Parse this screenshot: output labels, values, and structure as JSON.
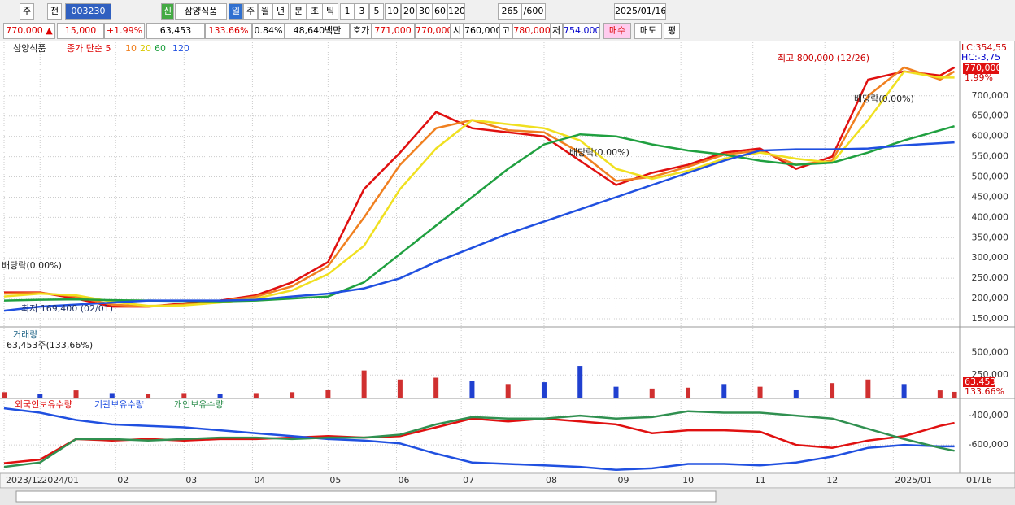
{
  "header": {
    "toolbar": [
      "주",
      "전",
      "003230",
      "신",
      "삼양식품",
      "일",
      "주",
      "월",
      "년",
      "분",
      "초",
      "틱",
      "1",
      "3",
      "5",
      "10",
      "20",
      "30",
      "60",
      "120",
      "265",
      "/600",
      "2025/01/16"
    ],
    "info": [
      "770,000 ▲",
      "15,000",
      "+1.99%",
      "63,453",
      "133.66%",
      "0.84%",
      "48,640백만",
      "호가",
      "771,000",
      "770,000",
      "시",
      "760,000",
      "고",
      "780,000",
      "저",
      "754,000",
      "매수",
      "매도",
      "평"
    ],
    "x_end_label": "01/16"
  },
  "chart_data": [
    {
      "type": "line",
      "title": "삼양식품",
      "x": [
        0,
        10,
        20,
        30,
        40,
        50,
        60,
        70,
        80,
        90,
        100,
        110,
        120,
        130,
        140,
        150,
        160,
        170,
        180,
        190,
        200,
        210,
        220,
        230,
        240,
        250,
        260,
        264
      ],
      "xlim": [
        0,
        265
      ],
      "xticks": [
        {
          "value": 0,
          "label": "2023/12"
        },
        {
          "value": 10,
          "label": "2024/01"
        },
        {
          "value": 31,
          "label": "02"
        },
        {
          "value": 50,
          "label": "03"
        },
        {
          "value": 69,
          "label": "04"
        },
        {
          "value": 90,
          "label": "05"
        },
        {
          "value": 109,
          "label": "06"
        },
        {
          "value": 127,
          "label": "07"
        },
        {
          "value": 150,
          "label": "08"
        },
        {
          "value": 170,
          "label": "09"
        },
        {
          "value": 188,
          "label": "10"
        },
        {
          "value": 208,
          "label": "11"
        },
        {
          "value": 228,
          "label": "12"
        },
        {
          "value": 247,
          "label": "2025/01"
        }
      ],
      "ylim": [
        134000,
        832000
      ],
      "yticks": [
        {
          "value": 150000,
          "label": "150,000"
        },
        {
          "value": 200000,
          "label": "200,000"
        },
        {
          "value": 250000,
          "label": "250,000"
        },
        {
          "value": 300000,
          "label": "300,000"
        },
        {
          "value": 350000,
          "label": "350,000"
        },
        {
          "value": 400000,
          "label": "400,000"
        },
        {
          "value": 450000,
          "label": "450,000"
        },
        {
          "value": 500000,
          "label": "500,000"
        },
        {
          "value": 550000,
          "label": "550,000"
        },
        {
          "value": 600000,
          "label": "600,000"
        },
        {
          "value": 650000,
          "label": "650,000"
        },
        {
          "value": 700000,
          "label": "700,000"
        }
      ],
      "grid": true,
      "series": [
        {
          "name": "종가 단순 5",
          "color": "#e01010",
          "values": [
            215000,
            215000,
            200000,
            180000,
            180000,
            188000,
            195000,
            208000,
            240000,
            290000,
            470000,
            560000,
            660000,
            620000,
            610000,
            600000,
            540000,
            480000,
            510000,
            530000,
            560000,
            570000,
            520000,
            550000,
            740000,
            760000,
            750000,
            770000
          ]
        },
        {
          "name": "10",
          "color": "#f08020",
          "values": [
            212000,
            214000,
            205000,
            185000,
            180000,
            185000,
            193000,
            205000,
            230000,
            280000,
            400000,
            530000,
            620000,
            640000,
            615000,
            610000,
            560000,
            490000,
            500000,
            525000,
            555000,
            565000,
            530000,
            540000,
            700000,
            770000,
            740000,
            760000
          ]
        },
        {
          "name": "20",
          "color": "#f0e020",
          "values": [
            205000,
            212000,
            208000,
            192000,
            182000,
            183000,
            190000,
            200000,
            220000,
            260000,
            330000,
            470000,
            570000,
            640000,
            630000,
            620000,
            590000,
            520000,
            495000,
            515000,
            545000,
            560000,
            545000,
            535000,
            640000,
            760000,
            745000,
            745000
          ]
        },
        {
          "name": "60",
          "color": "#20a040",
          "values": [
            195000,
            197000,
            198000,
            196000,
            195000,
            194000,
            193000,
            195000,
            200000,
            205000,
            240000,
            310000,
            380000,
            450000,
            520000,
            580000,
            605000,
            600000,
            580000,
            565000,
            555000,
            540000,
            530000,
            535000,
            560000,
            590000,
            615000,
            625000
          ]
        },
        {
          "name": "120",
          "color": "#2050e0",
          "values": [
            170000,
            180000,
            185000,
            190000,
            195000,
            195000,
            195000,
            197000,
            205000,
            212000,
            225000,
            250000,
            290000,
            325000,
            360000,
            390000,
            420000,
            450000,
            480000,
            510000,
            540000,
            565000,
            568000,
            568000,
            570000,
            578000,
            583000,
            585000
          ]
        }
      ],
      "annotations": [
        "최고 800,000 (12/26)",
        "최저 169,400 (02/01)",
        "배당락(0.00%)",
        "배당락(0.00%)",
        "배당락(0.00%)"
      ],
      "axis_labels": [
        "LC:354,55",
        "HC:-3,75",
        "770,000",
        "1.99%"
      ]
    },
    {
      "type": "bar",
      "title": "거래량",
      "x": [
        0,
        10,
        20,
        30,
        40,
        50,
        60,
        70,
        80,
        90,
        100,
        110,
        120,
        130,
        140,
        150,
        160,
        170,
        180,
        190,
        200,
        210,
        220,
        230,
        240,
        250,
        260,
        264
      ],
      "xlim": [
        0,
        265
      ],
      "values": [
        60000,
        40000,
        80000,
        50000,
        40000,
        50000,
        40000,
        50000,
        60000,
        90000,
        300000,
        200000,
        220000,
        180000,
        150000,
        170000,
        350000,
        120000,
        100000,
        110000,
        150000,
        120000,
        90000,
        160000,
        200000,
        150000,
        80000,
        63453
      ],
      "colors": [
        "#d03030",
        "#2040d0",
        "#d03030",
        "#2040d0",
        "#d03030",
        "#d03030",
        "#2040d0",
        "#d03030",
        "#d03030",
        "#d03030",
        "#d03030",
        "#d03030",
        "#d03030",
        "#2040d0",
        "#d03030",
        "#2040d0",
        "#2040d0",
        "#2040d0",
        "#d03030",
        "#d03030",
        "#2040d0",
        "#d03030",
        "#2040d0",
        "#d03030",
        "#d03030",
        "#2040d0",
        "#d03030",
        "#d03030"
      ],
      "ylim": [
        0,
        800000
      ],
      "yticks": [
        {
          "value": 250000,
          "label": "250,000"
        },
        {
          "value": 500000,
          "label": "500,000"
        }
      ],
      "annotations": [
        "63,453주(133,66%)"
      ],
      "axis_labels": [
        "63,453",
        "133.66%"
      ]
    },
    {
      "type": "line",
      "x": [
        0,
        10,
        20,
        30,
        40,
        50,
        60,
        70,
        80,
        90,
        100,
        110,
        120,
        130,
        140,
        150,
        160,
        170,
        180,
        190,
        200,
        210,
        220,
        230,
        240,
        250,
        260,
        264
      ],
      "xlim": [
        0,
        265
      ],
      "ylim": [
        -794000,
        -294000
      ],
      "yticks": [
        {
          "value": -400000,
          "label": "-400,000"
        },
        {
          "value": -600000,
          "label": "-600,000"
        }
      ],
      "series": [
        {
          "name": "외국인보유수량",
          "color": "#e01010",
          "values": [
            -725000,
            -700000,
            -560000,
            -570000,
            -560000,
            -570000,
            -560000,
            -560000,
            -550000,
            -540000,
            -550000,
            -540000,
            -480000,
            -420000,
            -440000,
            -420000,
            -440000,
            -460000,
            -520000,
            -500000,
            -500000,
            -510000,
            -600000,
            -620000,
            -570000,
            -540000,
            -470000,
            -450000
          ]
        },
        {
          "name": "기관보유수량",
          "color": "#2050e0",
          "values": [
            -350000,
            -380000,
            -430000,
            -460000,
            -470000,
            -480000,
            -500000,
            -520000,
            -540000,
            -560000,
            -570000,
            -590000,
            -660000,
            -720000,
            -730000,
            -740000,
            -750000,
            -770000,
            -760000,
            -730000,
            -730000,
            -740000,
            -720000,
            -680000,
            -620000,
            -600000,
            -610000,
            -610000
          ]
        },
        {
          "name": "개인보유수량",
          "color": "#309050",
          "values": [
            -750000,
            -720000,
            -560000,
            -560000,
            -570000,
            -560000,
            -550000,
            -550000,
            -560000,
            -550000,
            -550000,
            -530000,
            -460000,
            -410000,
            -420000,
            -420000,
            -400000,
            -420000,
            -410000,
            -370000,
            -380000,
            -380000,
            -400000,
            -420000,
            -490000,
            -560000,
            -620000,
            -640000
          ]
        }
      ]
    }
  ]
}
